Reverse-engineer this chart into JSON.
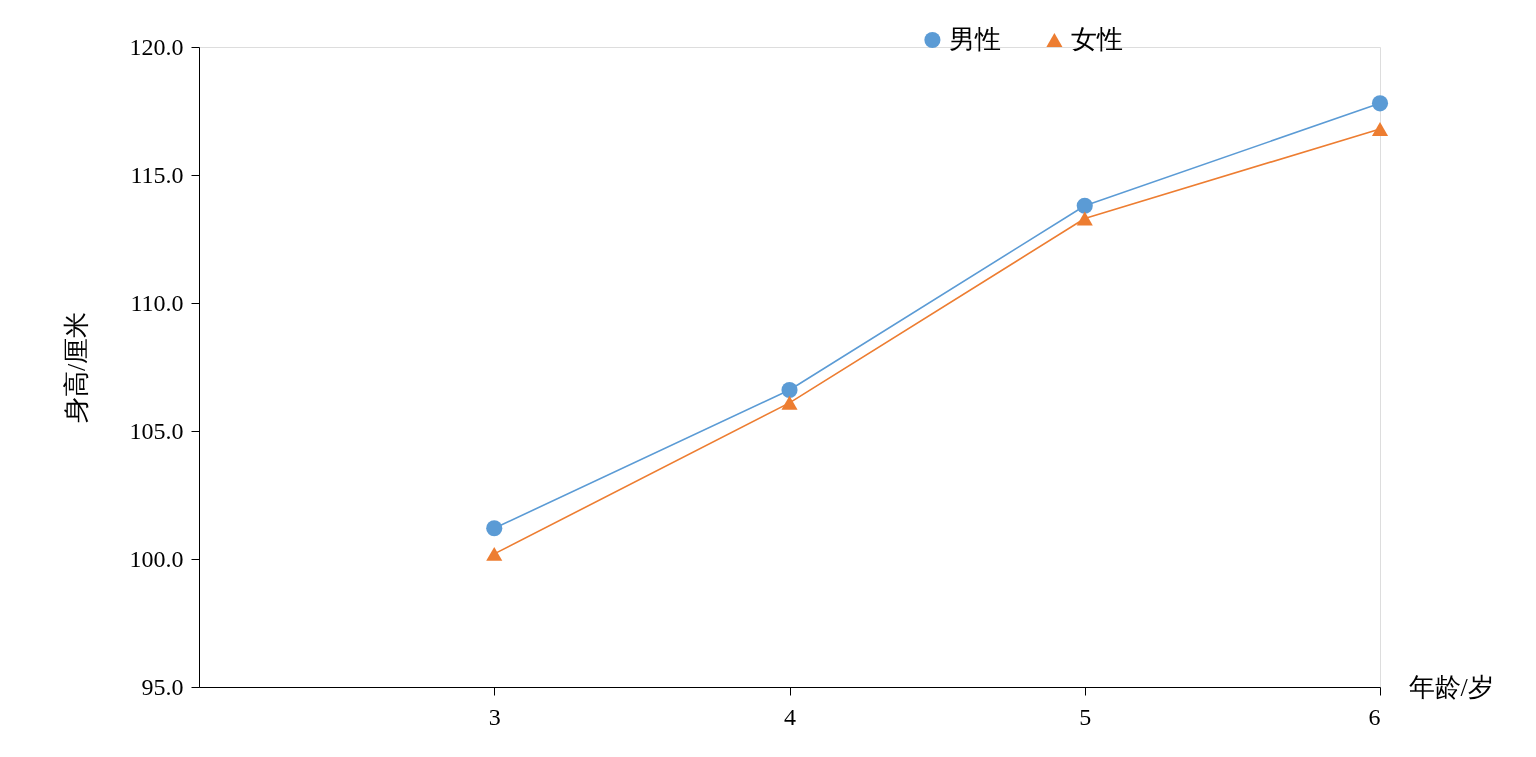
{
  "chart_data": {
    "type": "line",
    "xlabel": "年龄/岁",
    "ylabel": "身高/厘米",
    "x": [
      3,
      4,
      5,
      6
    ],
    "xlim": [
      2,
      6
    ],
    "xticks": [
      3,
      4,
      5,
      6
    ],
    "ylim": [
      95,
      120
    ],
    "yticks": [
      {
        "value": 95,
        "label": "95.0"
      },
      {
        "value": 100,
        "label": "100.0"
      },
      {
        "value": 105,
        "label": "105.0"
      },
      {
        "value": 110,
        "label": "110.0"
      },
      {
        "value": 115,
        "label": "115.0"
      },
      {
        "value": 120,
        "label": "120.0"
      }
    ],
    "series": [
      {
        "name": "男性",
        "color": "#5b9bd5",
        "marker": "circle",
        "values": [
          101.2,
          106.6,
          113.8,
          117.8
        ]
      },
      {
        "name": "女性",
        "color": "#ed7d31",
        "marker": "triangle",
        "values": [
          100.2,
          106.1,
          113.3,
          116.8
        ]
      }
    ],
    "grid": false,
    "legend": "top right"
  }
}
